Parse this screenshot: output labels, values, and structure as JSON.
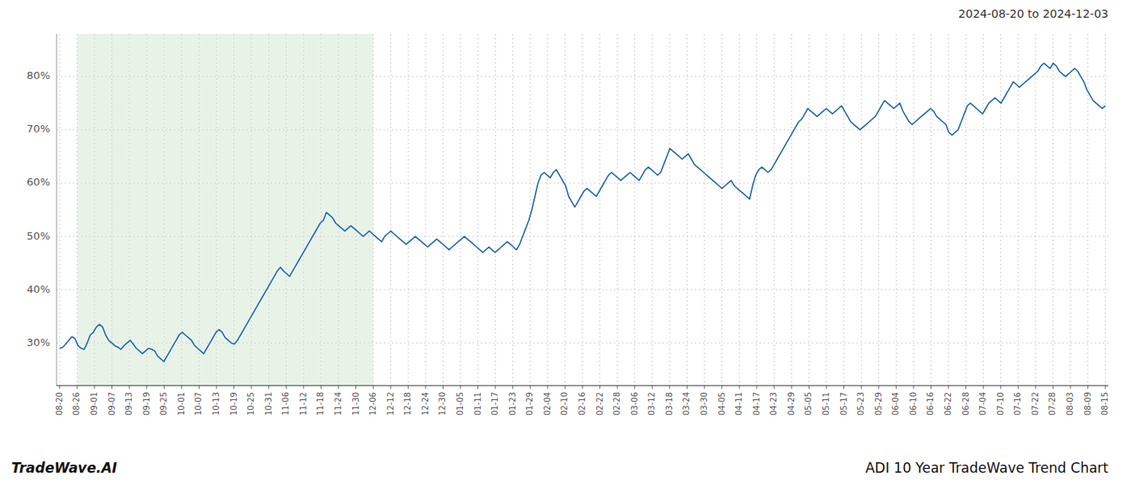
{
  "chart_data": {
    "type": "line",
    "title": "ADI 10 Year TradeWave Trend Chart",
    "subtitle": "2024-08-20 to 2024-12-03",
    "annotations": [
      "TradeWave.AI"
    ],
    "color": "#2166ac",
    "grid": true,
    "shade": {
      "start": 5.683333,
      "end": 102.3,
      "color": "#d6ead6"
    },
    "xlim": [
      -1,
      342
    ],
    "xticks": [
      {
        "value": 0,
        "label": "08-20"
      },
      {
        "value": 5.683333,
        "label": "08-26"
      },
      {
        "value": 11.366667,
        "label": "09-01"
      },
      {
        "value": 17.05,
        "label": "09-07"
      },
      {
        "value": 22.733333,
        "label": "09-13"
      },
      {
        "value": 28.416667,
        "label": "09-19"
      },
      {
        "value": 34.1,
        "label": "09-25"
      },
      {
        "value": 39.783333,
        "label": "10-01"
      },
      {
        "value": 45.466667,
        "label": "10-07"
      },
      {
        "value": 51.15,
        "label": "10-13"
      },
      {
        "value": 56.833333,
        "label": "10-19"
      },
      {
        "value": 62.516667,
        "label": "10-25"
      },
      {
        "value": 68.2,
        "label": "10-31"
      },
      {
        "value": 73.883333,
        "label": "11-06"
      },
      {
        "value": 79.566667,
        "label": "11-12"
      },
      {
        "value": 85.25,
        "label": "11-18"
      },
      {
        "value": 90.933333,
        "label": "11-24"
      },
      {
        "value": 96.616667,
        "label": "11-30"
      },
      {
        "value": 102.3,
        "label": "12-06"
      },
      {
        "value": 107.983333,
        "label": "12-12"
      },
      {
        "value": 113.666667,
        "label": "12-18"
      },
      {
        "value": 119.35,
        "label": "12-24"
      },
      {
        "value": 125.033333,
        "label": "12-30"
      },
      {
        "value": 130.716667,
        "label": "01-05"
      },
      {
        "value": 136.4,
        "label": "01-11"
      },
      {
        "value": 142.083333,
        "label": "01-17"
      },
      {
        "value": 147.766667,
        "label": "01-23"
      },
      {
        "value": 153.45,
        "label": "01-29"
      },
      {
        "value": 159.133333,
        "label": "02-04"
      },
      {
        "value": 164.816667,
        "label": "02-10"
      },
      {
        "value": 170.5,
        "label": "02-16"
      },
      {
        "value": 176.183333,
        "label": "02-22"
      },
      {
        "value": 181.866667,
        "label": "02-28"
      },
      {
        "value": 187.55,
        "label": "03-06"
      },
      {
        "value": 193.233333,
        "label": "03-12"
      },
      {
        "value": 198.916667,
        "label": "03-18"
      },
      {
        "value": 204.6,
        "label": "03-24"
      },
      {
        "value": 210.283333,
        "label": "03-30"
      },
      {
        "value": 215.966667,
        "label": "04-05"
      },
      {
        "value": 221.65,
        "label": "04-11"
      },
      {
        "value": 227.333333,
        "label": "04-17"
      },
      {
        "value": 233.016667,
        "label": "04-23"
      },
      {
        "value": 238.7,
        "label": "04-29"
      },
      {
        "value": 244.383333,
        "label": "05-05"
      },
      {
        "value": 250.066667,
        "label": "05-11"
      },
      {
        "value": 255.75,
        "label": "05-17"
      },
      {
        "value": 261.433333,
        "label": "05-23"
      },
      {
        "value": 267.116667,
        "label": "05-29"
      },
      {
        "value": 272.8,
        "label": "06-04"
      },
      {
        "value": 278.483333,
        "label": "06-10"
      },
      {
        "value": 284.166667,
        "label": "06-16"
      },
      {
        "value": 289.85,
        "label": "06-22"
      },
      {
        "value": 295.533333,
        "label": "06-28"
      },
      {
        "value": 301.216667,
        "label": "07-04"
      },
      {
        "value": 306.9,
        "label": "07-10"
      },
      {
        "value": 312.583333,
        "label": "07-16"
      },
      {
        "value": 318.266667,
        "label": "07-22"
      },
      {
        "value": 323.95,
        "label": "07-28"
      },
      {
        "value": 329.633333,
        "label": "08-03"
      },
      {
        "value": 335.316667,
        "label": "08-09"
      },
      {
        "value": 341,
        "label": "08-15"
      }
    ],
    "ylim": [
      22,
      88
    ],
    "yticks": [
      {
        "value": 30,
        "label": "30%"
      },
      {
        "value": 40,
        "label": "40%"
      },
      {
        "value": 50,
        "label": "50%"
      },
      {
        "value": 60,
        "label": "60%"
      },
      {
        "value": 70,
        "label": "70%"
      },
      {
        "value": 80,
        "label": "80%"
      }
    ],
    "values": [
      29.0,
      29.2,
      29.8,
      30.5,
      31.2,
      30.8,
      29.5,
      29.0,
      28.8,
      30.0,
      31.5,
      32.0,
      33.0,
      33.5,
      33.0,
      31.5,
      30.5,
      30.0,
      29.5,
      29.2,
      28.8,
      29.5,
      30.0,
      30.5,
      29.8,
      29.0,
      28.5,
      28.0,
      28.5,
      29.0,
      28.8,
      28.5,
      27.5,
      27.0,
      26.5,
      27.5,
      28.5,
      29.5,
      30.5,
      31.5,
      32.0,
      31.5,
      31.0,
      30.5,
      29.5,
      29.0,
      28.5,
      28.0,
      29.0,
      30.0,
      31.0,
      32.0,
      32.5,
      32.0,
      31.0,
      30.5,
      30.0,
      29.8,
      30.5,
      31.5,
      32.5,
      33.5,
      34.5,
      35.5,
      36.5,
      37.5,
      38.5,
      39.5,
      40.5,
      41.5,
      42.5,
      43.5,
      44.2,
      43.5,
      43.0,
      42.5,
      43.5,
      44.5,
      45.5,
      46.5,
      47.5,
      48.5,
      49.5,
      50.5,
      51.5,
      52.5,
      53.0,
      54.5,
      54.0,
      53.5,
      52.5,
      52.0,
      51.5,
      51.0,
      51.5,
      52.0,
      51.5,
      51.0,
      50.5,
      50.0,
      50.5,
      51.0,
      50.5,
      50.0,
      49.5,
      49.0,
      50.0,
      50.5,
      51.0,
      50.5,
      50.0,
      49.5,
      49.0,
      48.5,
      49.0,
      49.5,
      50.0,
      49.5,
      49.0,
      48.5,
      48.0,
      48.5,
      49.0,
      49.5,
      49.0,
      48.5,
      48.0,
      47.5,
      48.0,
      48.5,
      49.0,
      49.5,
      50.0,
      49.5,
      49.0,
      48.5,
      48.0,
      47.5,
      47.0,
      47.5,
      48.0,
      47.5,
      47.0,
      47.5,
      48.0,
      48.5,
      49.0,
      48.5,
      48.0,
      47.5,
      48.5,
      50.0,
      51.5,
      53.0,
      55.0,
      57.5,
      60.0,
      61.5,
      62.0,
      61.5,
      61.0,
      62.0,
      62.5,
      61.5,
      60.5,
      59.5,
      57.5,
      56.5,
      55.5,
      56.5,
      57.5,
      58.5,
      59.0,
      58.5,
      58.0,
      57.5,
      58.5,
      59.5,
      60.5,
      61.5,
      62.0,
      61.5,
      61.0,
      60.5,
      61.0,
      61.5,
      62.0,
      61.5,
      61.0,
      60.5,
      61.5,
      62.5,
      63.0,
      62.5,
      62.0,
      61.5,
      62.0,
      63.5,
      65.0,
      66.5,
      66.0,
      65.5,
      65.0,
      64.5,
      65.0,
      65.5,
      64.5,
      63.5,
      63.0,
      62.5,
      62.0,
      61.5,
      61.0,
      60.5,
      60.0,
      59.5,
      59.0,
      59.5,
      60.0,
      60.5,
      59.5,
      59.0,
      58.5,
      58.0,
      57.5,
      57.0,
      59.5,
      61.5,
      62.5,
      63.0,
      62.5,
      62.0,
      62.5,
      63.5,
      64.5,
      65.5,
      66.5,
      67.5,
      68.5,
      69.5,
      70.5,
      71.5,
      72.0,
      73.0,
      74.0,
      73.5,
      73.0,
      72.5,
      73.0,
      73.5,
      74.0,
      73.5,
      73.0,
      73.5,
      74.0,
      74.5,
      73.5,
      72.5,
      71.5,
      71.0,
      70.5,
      70.0,
      70.5,
      71.0,
      71.5,
      72.0,
      72.5,
      73.5,
      74.5,
      75.5,
      75.0,
      74.5,
      74.0,
      74.5,
      75.0,
      73.5,
      72.5,
      71.5,
      71.0,
      71.5,
      72.0,
      72.5,
      73.0,
      73.5,
      74.0,
      73.5,
      72.5,
      72.0,
      71.5,
      71.0,
      69.5,
      69.0,
      69.5,
      70.0,
      71.5,
      73.0,
      74.5,
      75.0,
      74.5,
      74.0,
      73.5,
      73.0,
      74.0,
      75.0,
      75.5,
      76.0,
      75.5,
      75.0,
      76.0,
      77.0,
      78.0,
      79.0,
      78.5,
      78.0,
      78.5,
      79.0,
      79.5,
      80.0,
      80.5,
      81.0,
      82.0,
      82.5,
      82.0,
      81.5,
      82.5,
      82.0,
      81.0,
      80.5,
      80.0,
      80.5,
      81.0,
      81.5,
      81.0,
      80.0,
      79.0,
      77.5,
      76.5,
      75.5,
      75.0,
      74.5,
      74.0,
      74.5
    ]
  }
}
